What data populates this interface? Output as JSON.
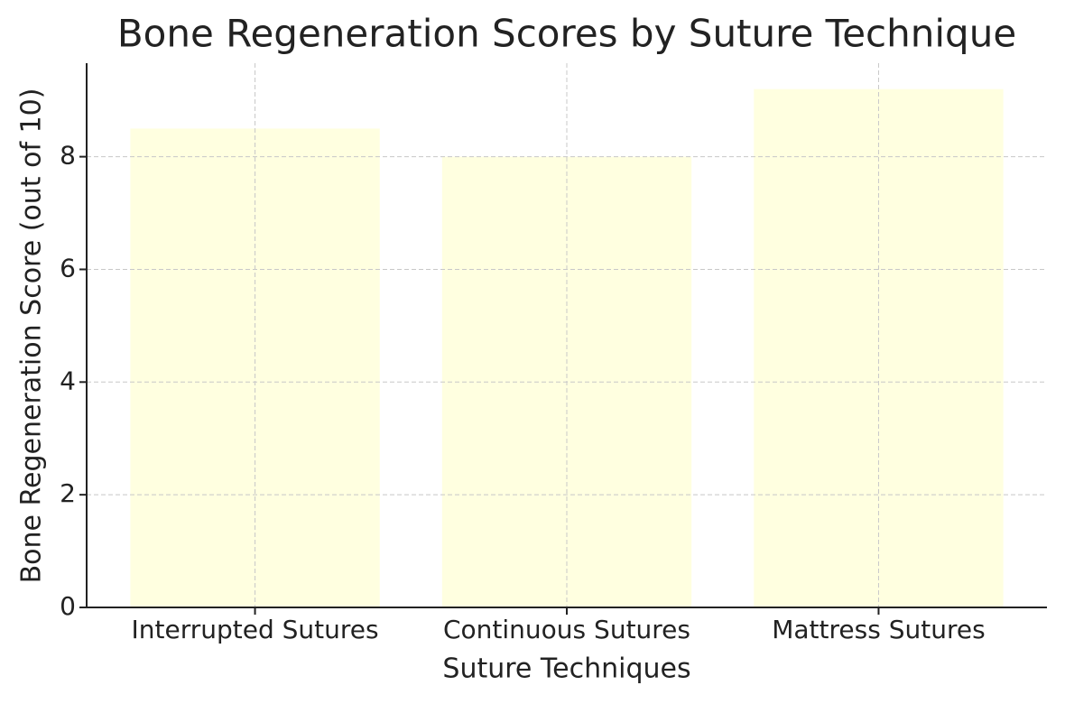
{
  "chart_data": {
    "type": "bar",
    "title": "Bone Regeneration Scores by Suture Technique",
    "x_label": "Suture Techniques",
    "y_label": "Bone Regeneration Score (out of 10)",
    "categories": [
      "Interrupted Sutures",
      "Continuous Sutures",
      "Mattress Sutures"
    ],
    "values": [
      8.5,
      8.0,
      9.2
    ],
    "color": "#ffffe0",
    "ylim": [
      0,
      9.66
    ],
    "yticks": [
      0,
      2,
      4,
      6,
      8
    ],
    "grid": true
  }
}
